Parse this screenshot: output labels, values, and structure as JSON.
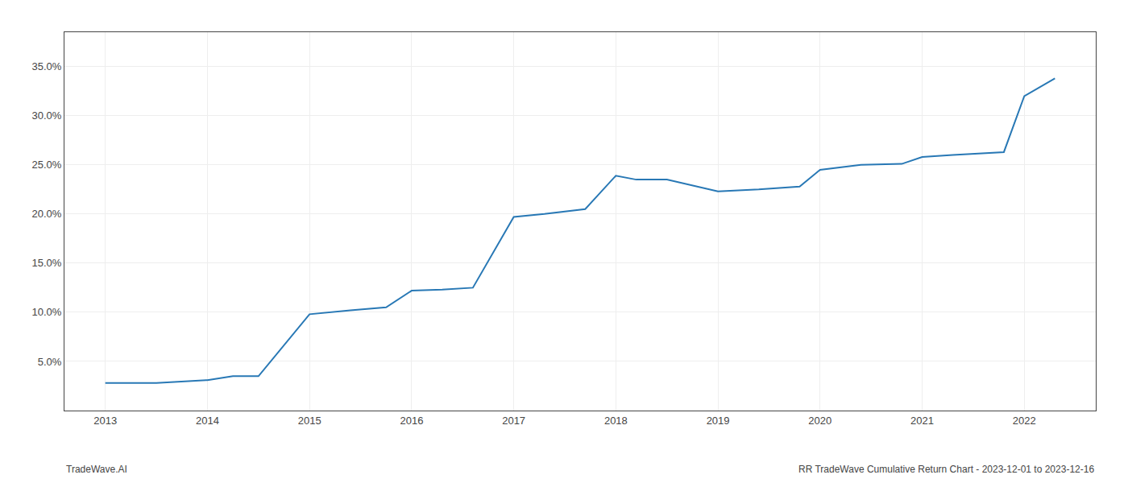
{
  "chart_data": {
    "type": "line",
    "x": [
      2013.0,
      2013.5,
      2014.0,
      2014.25,
      2014.5,
      2015.0,
      2015.4,
      2015.75,
      2016.0,
      2016.3,
      2016.6,
      2017.0,
      2017.3,
      2017.7,
      2018.0,
      2018.2,
      2018.5,
      2019.0,
      2019.4,
      2019.8,
      2020.0,
      2020.4,
      2020.8,
      2021.0,
      2021.3,
      2021.5,
      2021.8,
      2022.0,
      2022.3
    ],
    "values": [
      2.8,
      2.8,
      3.1,
      3.5,
      3.5,
      9.8,
      10.2,
      10.5,
      12.2,
      12.3,
      12.5,
      19.7,
      20.0,
      20.5,
      23.9,
      23.5,
      23.5,
      22.3,
      22.5,
      22.8,
      24.5,
      25.0,
      25.1,
      25.8,
      26.0,
      26.1,
      26.3,
      32.0,
      33.8
    ],
    "color": "#2878b5",
    "xlim": [
      2012.6,
      2022.7
    ],
    "xticks": [
      2013,
      2014,
      2015,
      2016,
      2017,
      2018,
      2019,
      2020,
      2021,
      2022
    ],
    "ylim": [
      0.0,
      38.5
    ],
    "yticks": [
      {
        "value": 5.0,
        "label": "5.0%"
      },
      {
        "value": 10.0,
        "label": "10.0%"
      },
      {
        "value": 15.0,
        "label": "15.0%"
      },
      {
        "value": 20.0,
        "label": "20.0%"
      },
      {
        "value": 25.0,
        "label": "25.0%"
      },
      {
        "value": 30.0,
        "label": "30.0%"
      },
      {
        "value": 35.0,
        "label": "35.0%"
      }
    ],
    "grid": true,
    "annotations": [
      "TradeWave.AI",
      "RR TradeWave Cumulative Return Chart - 2023-12-01 to 2023-12-16"
    ]
  }
}
